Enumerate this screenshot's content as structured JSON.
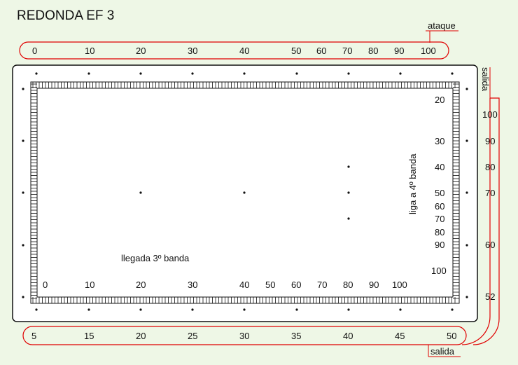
{
  "title": "REDONDA EF 3",
  "labels": {
    "ataque": "ataque",
    "salida_top": "salida",
    "salida_bottom": "salida",
    "llegada": "llegada 3º banda",
    "liga": "liga a 4º banda"
  },
  "scales": {
    "top": [
      "0",
      "10",
      "20",
      "30",
      "40",
      "50",
      "60",
      "70",
      "80",
      "90",
      "100"
    ],
    "bottom": [
      "5",
      "15",
      "20",
      "25",
      "30",
      "35",
      "40",
      "45",
      "50"
    ],
    "inner_bottom": [
      "0",
      "10",
      "20",
      "30",
      "40",
      "50",
      "60",
      "70",
      "80",
      "90",
      "100"
    ],
    "inner_right": [
      "20",
      "30",
      "40",
      "50",
      "60",
      "70",
      "80",
      "90",
      "100"
    ],
    "right": [
      "100",
      "90",
      "80",
      "70",
      "60",
      "52"
    ]
  },
  "colors": {
    "background": "#eef7e6",
    "line": "#e00000",
    "table": "#ffffff",
    "ink": "#111111"
  }
}
